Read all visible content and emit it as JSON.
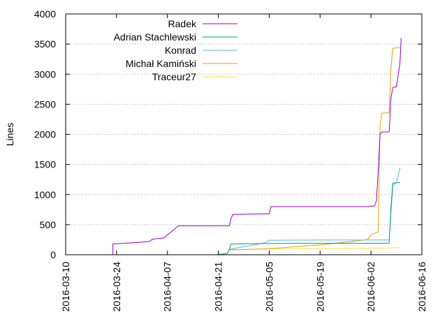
{
  "chart_data": {
    "type": "line",
    "title": "",
    "xlabel": "",
    "ylabel": "Lines",
    "x_type": "date",
    "xlim": [
      "2016-03-10",
      "2016-06-16"
    ],
    "ylim": [
      0,
      4000
    ],
    "x_ticks": [
      "2016-03-10",
      "2016-03-24",
      "2016-04-07",
      "2016-04-21",
      "2016-05-05",
      "2016-05-19",
      "2016-06-02",
      "2016-06-16"
    ],
    "y_ticks": [
      0,
      500,
      1000,
      1500,
      2000,
      2500,
      3000,
      3500,
      4000
    ],
    "grid": "horizontal dotted",
    "legend_position": "top-left",
    "series": [
      {
        "name": "Radek",
        "color": "#9400d3",
        "points": [
          [
            "2016-03-23",
            0
          ],
          [
            "2016-03-23",
            180
          ],
          [
            "2016-03-26",
            190
          ],
          [
            "2016-03-30",
            205
          ],
          [
            "2016-04-02",
            220
          ],
          [
            "2016-04-03",
            260
          ],
          [
            "2016-04-06",
            280
          ],
          [
            "2016-04-08",
            380
          ],
          [
            "2016-04-10",
            480
          ],
          [
            "2016-04-15",
            480
          ],
          [
            "2016-04-24",
            480
          ],
          [
            "2016-04-24.5",
            600
          ],
          [
            "2016-04-25",
            670
          ],
          [
            "2016-05-05",
            680
          ],
          [
            "2016-05-05.5",
            800
          ],
          [
            "2016-05-20",
            800
          ],
          [
            "2016-06-01",
            800
          ],
          [
            "2016-06-03",
            810
          ],
          [
            "2016-06-03.5",
            900
          ],
          [
            "2016-06-04",
            1400
          ],
          [
            "2016-06-04.5",
            2000
          ],
          [
            "2016-06-05",
            2040
          ],
          [
            "2016-06-07",
            2040
          ],
          [
            "2016-06-07.5",
            2600
          ],
          [
            "2016-06-08",
            2780
          ],
          [
            "2016-06-09",
            2790
          ],
          [
            "2016-06-10",
            3200
          ],
          [
            "2016-06-10.3",
            3600
          ]
        ]
      },
      {
        "name": "Adrian Stachlewski",
        "color": "#009e73",
        "points": [
          [
            "2016-04-20",
            0
          ],
          [
            "2016-04-22",
            10
          ],
          [
            "2016-04-23.5",
            20
          ],
          [
            "2016-04-24",
            90
          ],
          [
            "2016-04-24.5",
            180
          ],
          [
            "2016-05-10",
            190
          ],
          [
            "2016-06-01",
            190
          ],
          [
            "2016-06-07",
            190
          ],
          [
            "2016-06-07.5",
            800
          ],
          [
            "2016-06-08",
            1190
          ],
          [
            "2016-06-10",
            1200
          ]
        ]
      },
      {
        "name": "Konrad",
        "color": "#56b4e9",
        "points": [
          [
            "2016-04-24",
            90
          ],
          [
            "2016-05-04",
            200
          ],
          [
            "2016-05-05",
            240
          ],
          [
            "2016-05-20",
            245
          ],
          [
            "2016-06-07",
            245
          ],
          [
            "2016-06-07.5",
            700
          ],
          [
            "2016-06-08",
            1150
          ],
          [
            "2016-06-09",
            1200
          ],
          [
            "2016-06-10",
            1450
          ]
        ]
      },
      {
        "name": "Michał Kamiński",
        "color": "#e69f00",
        "points": [
          [
            "2016-04-24",
            80
          ],
          [
            "2016-05-05",
            100
          ],
          [
            "2016-05-20",
            170
          ],
          [
            "2016-06-01",
            250
          ],
          [
            "2016-06-02",
            330
          ],
          [
            "2016-06-04",
            380
          ],
          [
            "2016-06-04.5",
            2150
          ],
          [
            "2016-06-05",
            2350
          ],
          [
            "2016-06-07",
            2360
          ],
          [
            "2016-06-07.5",
            3100
          ],
          [
            "2016-06-08",
            3430
          ],
          [
            "2016-06-10",
            3440
          ]
        ]
      },
      {
        "name": "Traceur27",
        "color": "#f0e442",
        "points": [
          [
            "2016-04-24",
            85
          ],
          [
            "2016-05-05",
            95
          ],
          [
            "2016-06-07",
            110
          ],
          [
            "2016-06-10",
            120
          ]
        ]
      }
    ]
  }
}
